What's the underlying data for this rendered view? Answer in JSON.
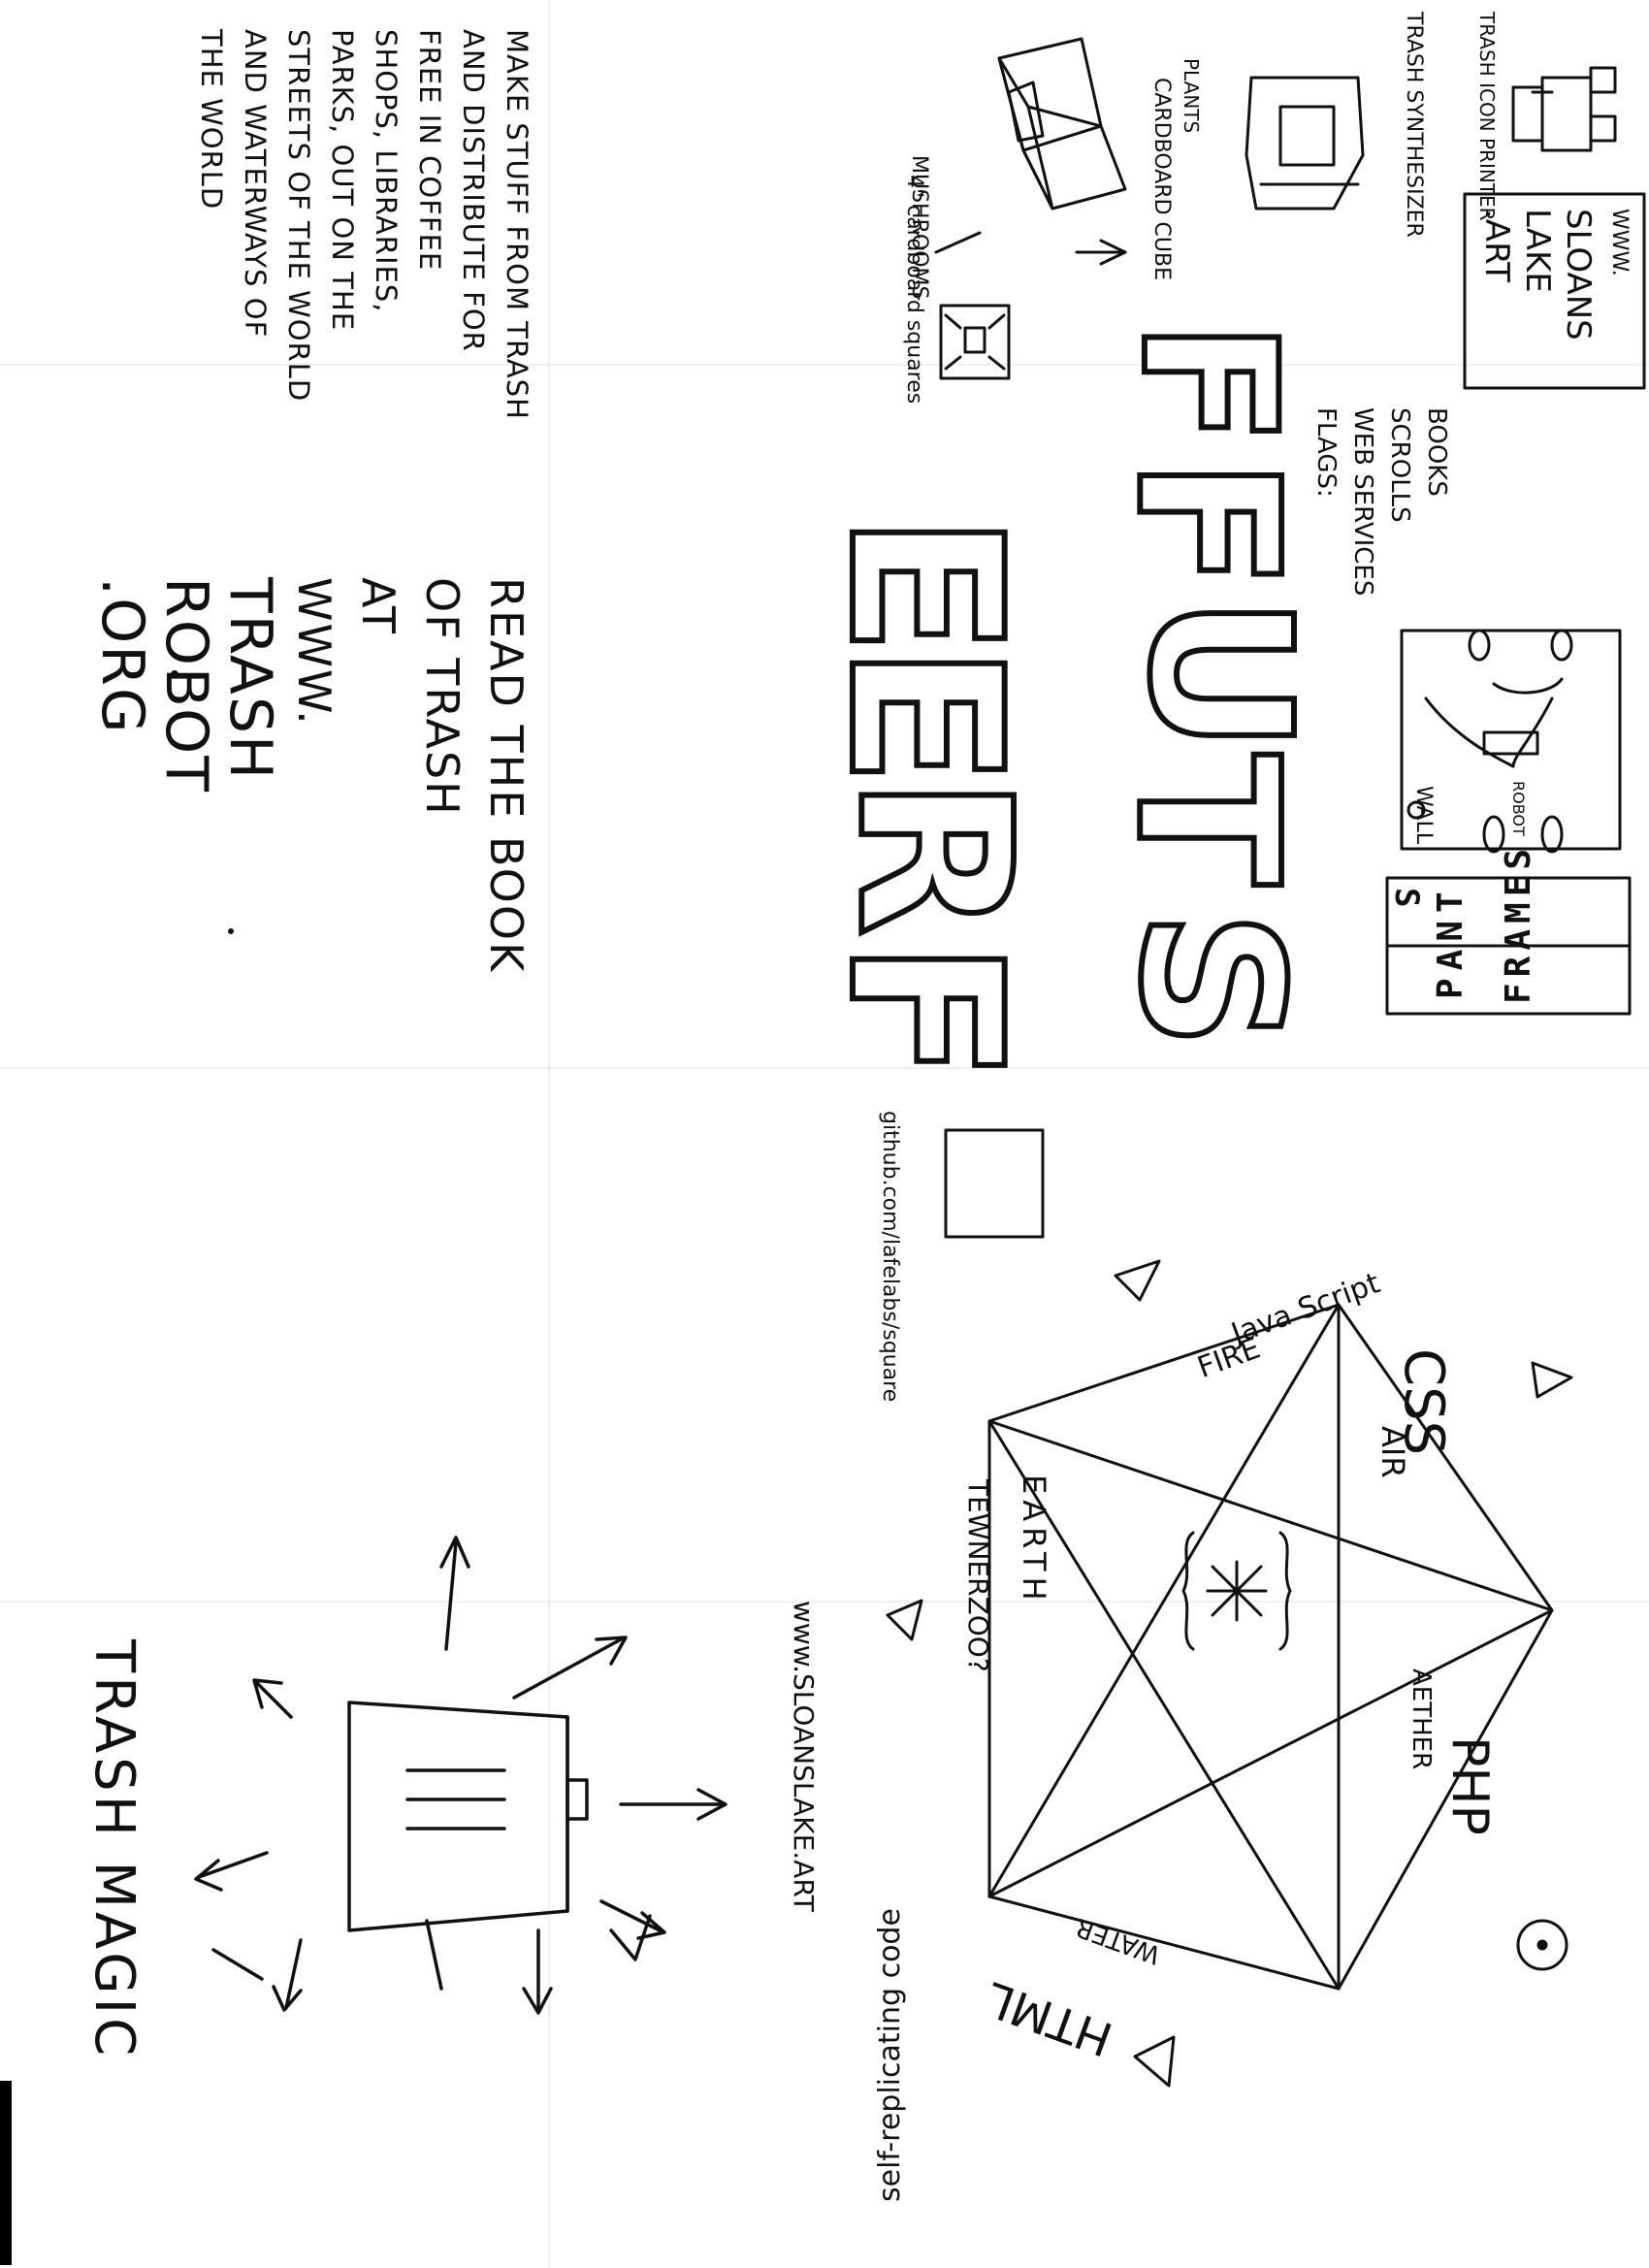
{
  "left_panel": {
    "paragraph_lines": [
      "MAKE STUFF FROM TRASH",
      "AND DISTRIBUTE FOR",
      "FREE IN COFFEE",
      "SHOPS, LIBRARIES,",
      "PARKS, OUT ON THE",
      "STREETS OF THE WORLD",
      "AND WATERWAYS OF",
      "THE WORLD"
    ],
    "read_lines": [
      "READ THE BOOK",
      "OF TRASH",
      "AT",
      "WWW.",
      "TRASH",
      "ROBOT",
      ".ORG"
    ],
    "trash_magic": "TRASH MAGIC"
  },
  "free_stuff": {
    "title_word1": [
      "F",
      "R",
      "E",
      "E"
    ],
    "title_word2": [
      "S",
      "T",
      "U",
      "F",
      "F"
    ],
    "mushrooms": "MUSHROOMS",
    "cardboard_squares": "4\" cardboard squares",
    "cardboard_cube": "CARDBOARD CUBE",
    "plants": "PLANTS",
    "trash_synthesizer": "TRASH SYNTHESIZER",
    "trash_icon_printer": "TRASH ICON PRINTER",
    "books_lines": [
      "BOOKS",
      "SCROLLS",
      "WEB SERVICES",
      "FLAGS:"
    ],
    "flag_text": [
      "WWW.",
      "SLOANS",
      "LAKE",
      ".ART"
    ],
    "wall": "WALL",
    "robot": "ROBOT",
    "panel_letters": [
      "P",
      "A",
      "N",
      "T",
      "S"
    ],
    "frame_letters": [
      "F",
      "R",
      "A",
      "M",
      "E",
      "S"
    ]
  },
  "hexagon": {
    "github": "github.com/lafelabs/square",
    "javascript": "Java Script",
    "fire": "FIRE",
    "css": "CSS",
    "air": "AIR",
    "earth": "EARTH",
    "tewnerzoo": "TEWNERZOO?",
    "aether": "AETHER",
    "php": "PHP",
    "water": "WATER",
    "html": "HTML",
    "sloanslake": "www.SLOANSLAKE.ART",
    "self_replicating": "self-replicating code"
  }
}
